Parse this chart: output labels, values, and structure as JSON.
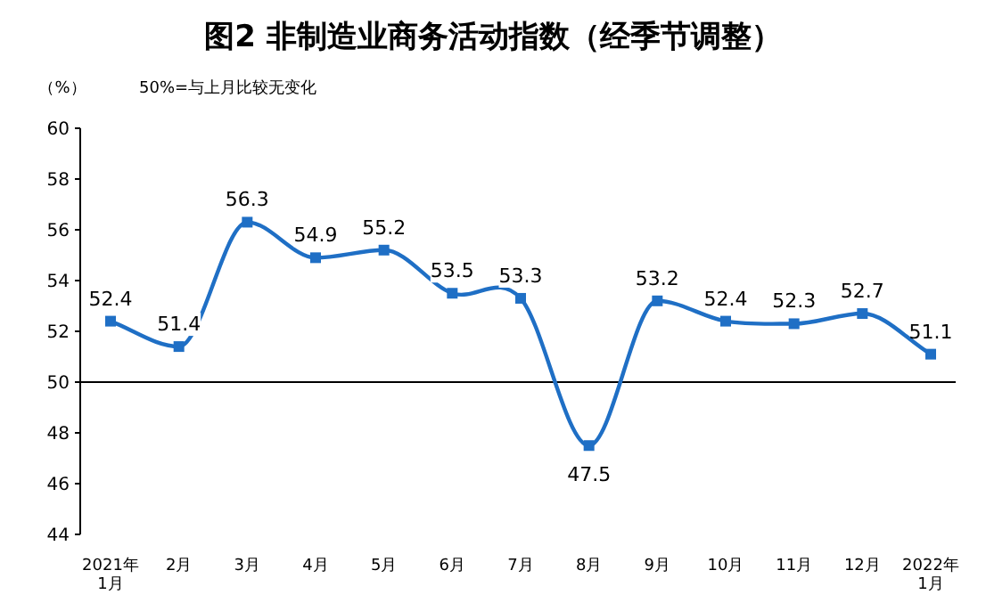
{
  "chart_data": {
    "type": "line",
    "title": "图2  非制造业商务活动指数（经季节调整）",
    "ylabel": "（%）",
    "annotations": [
      "50%=与上月比较无变化"
    ],
    "categories": [
      "2021年\n1月",
      "2月",
      "3月",
      "4月",
      "5月",
      "6月",
      "7月",
      "8月",
      "9月",
      "10月",
      "11月",
      "12月",
      "2022年\n1月"
    ],
    "series": [
      {
        "color": "#1f6fc5",
        "values": [
          52.4,
          51.4,
          56.3,
          54.9,
          55.2,
          53.5,
          53.3,
          47.5,
          53.2,
          52.4,
          52.3,
          52.7,
          51.1
        ]
      }
    ],
    "ylim": [
      44,
      60
    ],
    "yticks": [
      44,
      46,
      48,
      50,
      52,
      54,
      56,
      58,
      60
    ],
    "marker": "square",
    "data_labels": true,
    "ref_lines": [
      {
        "axis": "y",
        "value": 50,
        "color": "#000000"
      }
    ]
  }
}
